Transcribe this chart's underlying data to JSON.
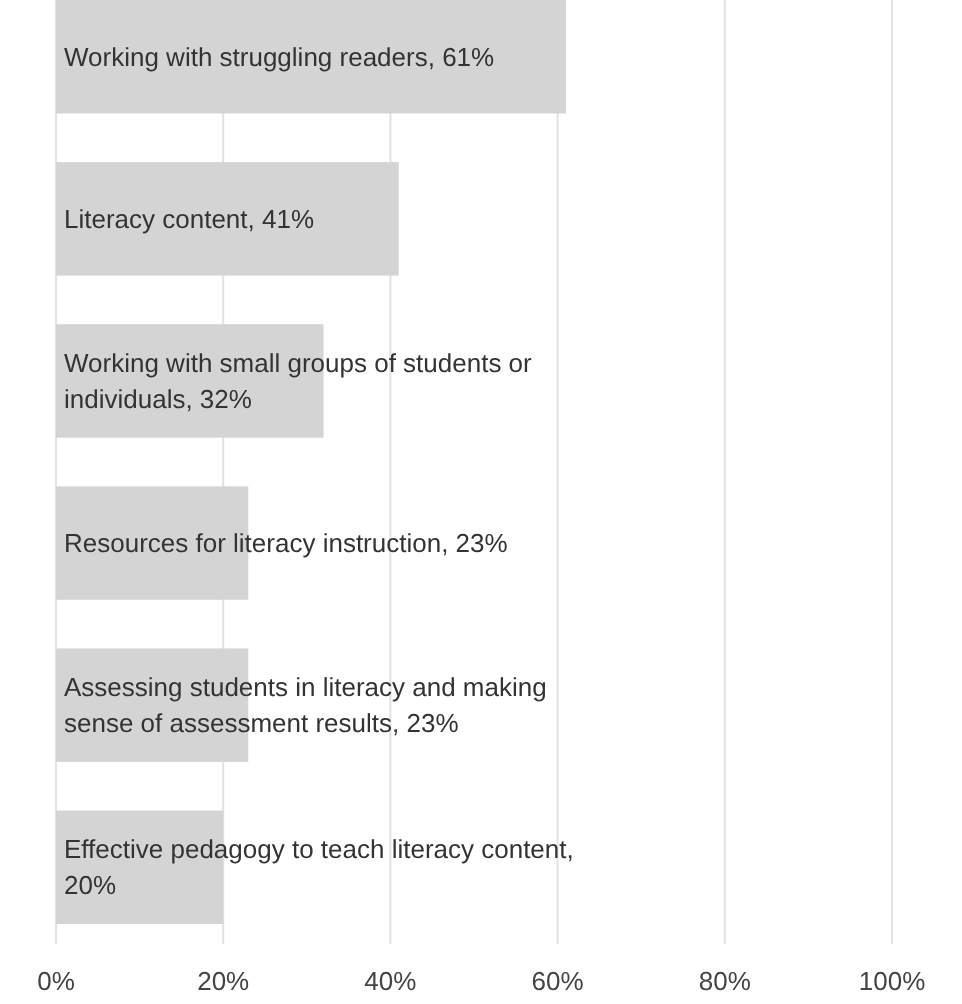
{
  "chart_data": {
    "type": "bar",
    "orientation": "horizontal",
    "categories": [
      null,
      null,
      null,
      null,
      null,
      null
    ],
    "values": [
      61,
      41,
      32,
      23,
      23,
      20
    ],
    "value_labels": [
      "Working with struggling readers, 61%",
      "Literacy content, 41%",
      "Working with small groups of students or individuals, 32%",
      "Resources for literacy instruction, 23%",
      "Assessing students in literacy and making sense of assessment results, 23%",
      "Effective pedagogy to teach literacy content, 20%"
    ],
    "color": "#d4d4d4",
    "xlim": [
      0,
      100
    ],
    "xticks": [
      {
        "value": 0,
        "label": "0%"
      },
      {
        "value": 20,
        "label": "20%"
      },
      {
        "value": 40,
        "label": "40%"
      },
      {
        "value": 60,
        "label": "60%"
      },
      {
        "value": 80,
        "label": "80%"
      },
      {
        "value": 100,
        "label": "100%"
      }
    ],
    "grid": "x"
  }
}
